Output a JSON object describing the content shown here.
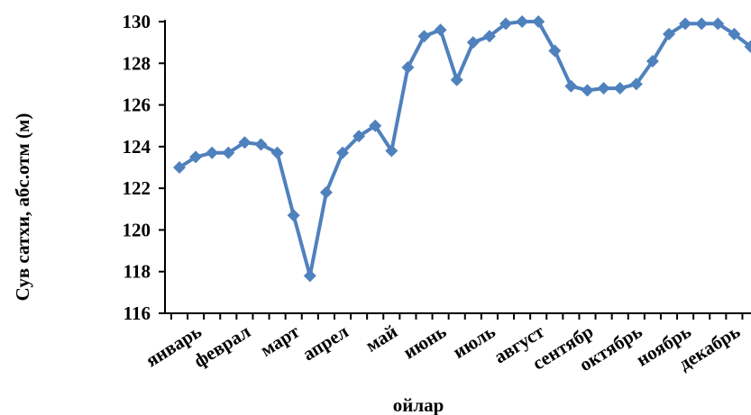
{
  "chart_data": {
    "type": "line",
    "title": "",
    "xlabel": "ойлар",
    "ylabel": "Сув сатхи, абс.отм (м)",
    "ylim": [
      116,
      130
    ],
    "yticks": [
      116,
      118,
      120,
      122,
      124,
      126,
      128,
      130
    ],
    "grid": false,
    "legend": "none",
    "month_labels": [
      "январь",
      "феврал",
      "март",
      "апрел",
      "май",
      "июнь",
      "июль",
      "август",
      "сентябр",
      "октябрь",
      "ноябрь",
      "декабрь"
    ],
    "points_per_month": 3,
    "series": [
      {
        "color": "#4F81BD",
        "marker": "diamond",
        "values": [
          123.0,
          123.5,
          123.7,
          123.7,
          124.2,
          124.1,
          123.7,
          120.7,
          117.8,
          121.8,
          123.7,
          124.5,
          125.0,
          123.8,
          127.8,
          129.3,
          129.6,
          127.2,
          129.0,
          129.3,
          129.9,
          130.0,
          130.0,
          128.6,
          126.9,
          126.7,
          126.8,
          126.8,
          127.0,
          128.1,
          129.4,
          129.9,
          129.9,
          129.9,
          129.4,
          128.8
        ]
      }
    ]
  }
}
